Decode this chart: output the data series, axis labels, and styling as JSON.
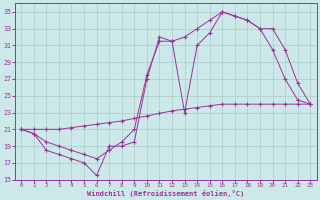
{
  "background_color": "#cce8e8",
  "grid_color": "#aacccc",
  "line_color": "#993399",
  "xlim": [
    -0.5,
    23.5
  ],
  "ylim": [
    15,
    36
  ],
  "yticks": [
    15,
    17,
    19,
    21,
    23,
    25,
    27,
    29,
    31,
    33,
    35
  ],
  "xticks": [
    0,
    1,
    2,
    3,
    4,
    5,
    6,
    7,
    8,
    9,
    10,
    11,
    12,
    13,
    14,
    15,
    16,
    17,
    18,
    19,
    20,
    21,
    22,
    23
  ],
  "xlabel": "Windchill (Refroidissement éolien,°C)",
  "series1_x": [
    0,
    1,
    2,
    3,
    4,
    5,
    6,
    7,
    8,
    9,
    10,
    11,
    12,
    13,
    14,
    15,
    16,
    17,
    18,
    19,
    20,
    21,
    22,
    23
  ],
  "series1_y": [
    21.0,
    21.0,
    21.0,
    21.0,
    21.2,
    21.4,
    21.6,
    21.8,
    22.0,
    22.3,
    22.6,
    22.9,
    23.2,
    23.4,
    23.6,
    23.8,
    24.0,
    24.0,
    24.0,
    24.0,
    24.0,
    24.0,
    24.0,
    24.0
  ],
  "series2_x": [
    0,
    1,
    2,
    3,
    4,
    5,
    6,
    7,
    8,
    9,
    10,
    11,
    12,
    13,
    14,
    15,
    16,
    17,
    18,
    19,
    20,
    21,
    22,
    23
  ],
  "series2_y": [
    21.0,
    20.5,
    18.5,
    18.0,
    17.5,
    17.0,
    15.5,
    19.0,
    19.0,
    19.5,
    27.0,
    32.0,
    31.5,
    23.0,
    31.0,
    32.5,
    35.0,
    34.5,
    34.0,
    33.0,
    30.5,
    27.0,
    24.5,
    24.0
  ],
  "series3_x": [
    0,
    1,
    2,
    3,
    4,
    5,
    6,
    7,
    8,
    9,
    10,
    11,
    12,
    13,
    14,
    15,
    16,
    17,
    18,
    19,
    20,
    21,
    22,
    23
  ],
  "series3_y": [
    21.0,
    20.5,
    19.5,
    19.0,
    18.5,
    18.0,
    17.5,
    18.5,
    19.5,
    21.0,
    27.5,
    31.5,
    31.5,
    32.0,
    33.0,
    34.0,
    35.0,
    34.5,
    34.0,
    33.0,
    33.0,
    30.5,
    26.5,
    24.0
  ]
}
